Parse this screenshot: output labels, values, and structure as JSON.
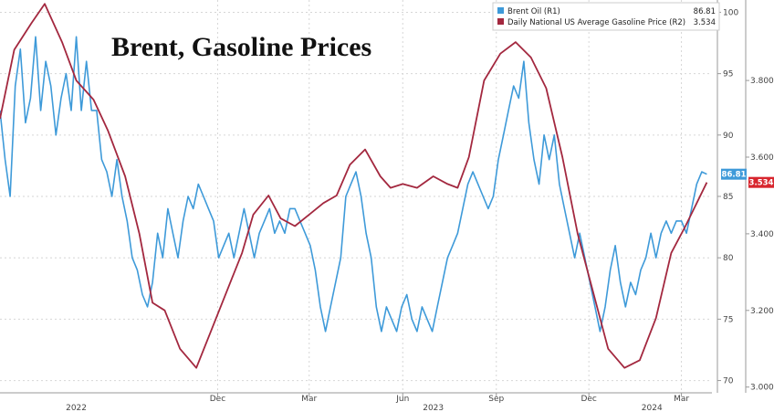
{
  "chart_data": {
    "type": "line",
    "title": "Brent, Gasoline Prices",
    "x_range": [
      "2022-05-01",
      "2024-03-31"
    ],
    "month_ticks": [
      {
        "date": "2022-12-01",
        "label": "Dec"
      },
      {
        "date": "2023-03-01",
        "label": "Mar"
      },
      {
        "date": "2023-06-01",
        "label": "Jun"
      },
      {
        "date": "2023-09-01",
        "label": "Sep"
      },
      {
        "date": "2023-12-01",
        "label": "Dec"
      },
      {
        "date": "2024-03-01",
        "label": "Mar"
      }
    ],
    "year_labels": [
      {
        "date": "2022-07-15",
        "label": "2022"
      },
      {
        "date": "2023-07-01",
        "label": "2023"
      },
      {
        "date": "2024-02-01",
        "label": "2024"
      }
    ],
    "y_left": {
      "ticks": [
        70,
        75,
        80,
        85,
        90,
        95,
        100
      ],
      "range": [
        69,
        101
      ]
    },
    "y_right": {
      "ticks": [
        "3.000",
        "3.200",
        "3.400",
        "3.600",
        "3.800"
      ],
      "tick_values": [
        3.0,
        3.2,
        3.4,
        3.6,
        3.8
      ],
      "range": [
        2.985,
        4.01
      ]
    },
    "legend": {
      "position": "top-right",
      "entries": [
        {
          "label": "Brent Oil (R1)",
          "value": "86.81",
          "color": "#3e9ad9"
        },
        {
          "label": "Daily National US Average Gasoline Price  (R2)",
          "value": "3.534",
          "color": "#a3283f"
        }
      ]
    },
    "last_value_badges": [
      {
        "text": "86.81",
        "color": "#3e9ad9"
      },
      {
        "text": "3.534",
        "color": "#d8262e"
      }
    ],
    "series": [
      {
        "name": "Brent Oil (R1)",
        "axis": "left",
        "color": "#3e9ad9",
        "points": [
          [
            "2022-05-01",
            92
          ],
          [
            "2022-05-06",
            88
          ],
          [
            "2022-05-11",
            85
          ],
          [
            "2022-05-16",
            94
          ],
          [
            "2022-05-21",
            97
          ],
          [
            "2022-05-26",
            91
          ],
          [
            "2022-05-31",
            93
          ],
          [
            "2022-06-05",
            98
          ],
          [
            "2022-06-10",
            92
          ],
          [
            "2022-06-15",
            96
          ],
          [
            "2022-06-20",
            94
          ],
          [
            "2022-06-25",
            90
          ],
          [
            "2022-06-30",
            93
          ],
          [
            "2022-07-05",
            95
          ],
          [
            "2022-07-10",
            92
          ],
          [
            "2022-07-15",
            98
          ],
          [
            "2022-07-20",
            92
          ],
          [
            "2022-07-25",
            96
          ],
          [
            "2022-07-30",
            92
          ],
          [
            "2022-08-04",
            92
          ],
          [
            "2022-08-09",
            88
          ],
          [
            "2022-08-14",
            87
          ],
          [
            "2022-08-19",
            85
          ],
          [
            "2022-08-24",
            88
          ],
          [
            "2022-08-29",
            85
          ],
          [
            "2022-09-03",
            83
          ],
          [
            "2022-09-08",
            80
          ],
          [
            "2022-09-13",
            79
          ],
          [
            "2022-09-18",
            77
          ],
          [
            "2022-09-23",
            76
          ],
          [
            "2022-09-28",
            78
          ],
          [
            "2022-10-03",
            82
          ],
          [
            "2022-10-08",
            80
          ],
          [
            "2022-10-13",
            84
          ],
          [
            "2022-10-18",
            82
          ],
          [
            "2022-10-23",
            80
          ],
          [
            "2022-10-28",
            83
          ],
          [
            "2022-11-02",
            85
          ],
          [
            "2022-11-07",
            84
          ],
          [
            "2022-11-12",
            86
          ],
          [
            "2022-11-17",
            85
          ],
          [
            "2022-11-22",
            84
          ],
          [
            "2022-11-27",
            83
          ],
          [
            "2022-12-02",
            80
          ],
          [
            "2022-12-07",
            81
          ],
          [
            "2022-12-12",
            82
          ],
          [
            "2022-12-17",
            80
          ],
          [
            "2022-12-22",
            82
          ],
          [
            "2022-12-27",
            84
          ],
          [
            "2023-01-01",
            82
          ],
          [
            "2023-01-06",
            80
          ],
          [
            "2023-01-11",
            82
          ],
          [
            "2023-01-16",
            83
          ],
          [
            "2023-01-21",
            84
          ],
          [
            "2023-01-26",
            82
          ],
          [
            "2023-01-31",
            83
          ],
          [
            "2023-02-05",
            82
          ],
          [
            "2023-02-10",
            84
          ],
          [
            "2023-02-15",
            84
          ],
          [
            "2023-02-20",
            83
          ],
          [
            "2023-02-25",
            82
          ],
          [
            "2023-03-02",
            81
          ],
          [
            "2023-03-07",
            79
          ],
          [
            "2023-03-12",
            76
          ],
          [
            "2023-03-17",
            74
          ],
          [
            "2023-03-22",
            76
          ],
          [
            "2023-03-27",
            78
          ],
          [
            "2023-04-01",
            80
          ],
          [
            "2023-04-06",
            85
          ],
          [
            "2023-04-11",
            86
          ],
          [
            "2023-04-16",
            87
          ],
          [
            "2023-04-21",
            85
          ],
          [
            "2023-04-26",
            82
          ],
          [
            "2023-05-01",
            80
          ],
          [
            "2023-05-06",
            76
          ],
          [
            "2023-05-11",
            74
          ],
          [
            "2023-05-16",
            76
          ],
          [
            "2023-05-21",
            75
          ],
          [
            "2023-05-26",
            74
          ],
          [
            "2023-05-31",
            76
          ],
          [
            "2023-06-05",
            77
          ],
          [
            "2023-06-10",
            75
          ],
          [
            "2023-06-15",
            74
          ],
          [
            "2023-06-20",
            76
          ],
          [
            "2023-06-25",
            75
          ],
          [
            "2023-06-30",
            74
          ],
          [
            "2023-07-05",
            76
          ],
          [
            "2023-07-10",
            78
          ],
          [
            "2023-07-15",
            80
          ],
          [
            "2023-07-20",
            81
          ],
          [
            "2023-07-25",
            82
          ],
          [
            "2023-07-30",
            84
          ],
          [
            "2023-08-04",
            86
          ],
          [
            "2023-08-09",
            87
          ],
          [
            "2023-08-14",
            86
          ],
          [
            "2023-08-19",
            85
          ],
          [
            "2023-08-24",
            84
          ],
          [
            "2023-08-29",
            85
          ],
          [
            "2023-09-03",
            88
          ],
          [
            "2023-09-08",
            90
          ],
          [
            "2023-09-13",
            92
          ],
          [
            "2023-09-18",
            94
          ],
          [
            "2023-09-23",
            93
          ],
          [
            "2023-09-28",
            96
          ],
          [
            "2023-10-03",
            91
          ],
          [
            "2023-10-08",
            88
          ],
          [
            "2023-10-13",
            86
          ],
          [
            "2023-10-18",
            90
          ],
          [
            "2023-10-23",
            88
          ],
          [
            "2023-10-28",
            90
          ],
          [
            "2023-11-02",
            86
          ],
          [
            "2023-11-07",
            84
          ],
          [
            "2023-11-12",
            82
          ],
          [
            "2023-11-17",
            80
          ],
          [
            "2023-11-22",
            82
          ],
          [
            "2023-11-27",
            80
          ],
          [
            "2023-12-02",
            78
          ],
          [
            "2023-12-07",
            76
          ],
          [
            "2023-12-12",
            74
          ],
          [
            "2023-12-17",
            76
          ],
          [
            "2023-12-22",
            79
          ],
          [
            "2023-12-27",
            81
          ],
          [
            "2024-01-01",
            78
          ],
          [
            "2024-01-06",
            76
          ],
          [
            "2024-01-11",
            78
          ],
          [
            "2024-01-16",
            77
          ],
          [
            "2024-01-21",
            79
          ],
          [
            "2024-01-26",
            80
          ],
          [
            "2024-01-31",
            82
          ],
          [
            "2024-02-05",
            80
          ],
          [
            "2024-02-10",
            82
          ],
          [
            "2024-02-15",
            83
          ],
          [
            "2024-02-20",
            82
          ],
          [
            "2024-02-25",
            83
          ],
          [
            "2024-03-01",
            83
          ],
          [
            "2024-03-06",
            82
          ],
          [
            "2024-03-11",
            84
          ],
          [
            "2024-03-16",
            86
          ],
          [
            "2024-03-21",
            87
          ],
          [
            "2024-03-26",
            86.81
          ]
        ]
      },
      {
        "name": "Daily National US Average Gasoline Price  (R2)",
        "axis": "right",
        "color": "#a3283f",
        "points": [
          [
            "2022-05-01",
            3.7
          ],
          [
            "2022-05-15",
            3.88
          ],
          [
            "2022-06-01",
            3.95
          ],
          [
            "2022-06-14",
            4.0
          ],
          [
            "2022-07-01",
            3.9
          ],
          [
            "2022-07-15",
            3.8
          ],
          [
            "2022-08-01",
            3.75
          ],
          [
            "2022-08-15",
            3.67
          ],
          [
            "2022-09-01",
            3.55
          ],
          [
            "2022-09-15",
            3.4
          ],
          [
            "2022-09-28",
            3.22
          ],
          [
            "2022-10-10",
            3.2
          ],
          [
            "2022-10-25",
            3.1
          ],
          [
            "2022-11-10",
            3.05
          ],
          [
            "2022-11-25",
            3.15
          ],
          [
            "2022-12-10",
            3.25
          ],
          [
            "2022-12-25",
            3.35
          ],
          [
            "2023-01-05",
            3.45
          ],
          [
            "2023-01-20",
            3.5
          ],
          [
            "2023-02-01",
            3.44
          ],
          [
            "2023-02-15",
            3.42
          ],
          [
            "2023-03-01",
            3.45
          ],
          [
            "2023-03-15",
            3.48
          ],
          [
            "2023-03-28",
            3.5
          ],
          [
            "2023-04-10",
            3.58
          ],
          [
            "2023-04-25",
            3.62
          ],
          [
            "2023-05-10",
            3.55
          ],
          [
            "2023-05-20",
            3.52
          ],
          [
            "2023-06-01",
            3.53
          ],
          [
            "2023-06-15",
            3.52
          ],
          [
            "2023-07-01",
            3.55
          ],
          [
            "2023-07-15",
            3.53
          ],
          [
            "2023-07-25",
            3.52
          ],
          [
            "2023-08-05",
            3.6
          ],
          [
            "2023-08-20",
            3.8
          ],
          [
            "2023-09-05",
            3.87
          ],
          [
            "2023-09-20",
            3.9
          ],
          [
            "2023-10-05",
            3.86
          ],
          [
            "2023-10-20",
            3.78
          ],
          [
            "2023-11-05",
            3.6
          ],
          [
            "2023-11-20",
            3.4
          ],
          [
            "2023-12-05",
            3.25
          ],
          [
            "2023-12-20",
            3.1
          ],
          [
            "2024-01-05",
            3.05
          ],
          [
            "2024-01-20",
            3.07
          ],
          [
            "2024-02-05",
            3.18
          ],
          [
            "2024-02-20",
            3.35
          ],
          [
            "2024-03-05",
            3.42
          ],
          [
            "2024-03-26",
            3.534
          ]
        ]
      }
    ]
  }
}
